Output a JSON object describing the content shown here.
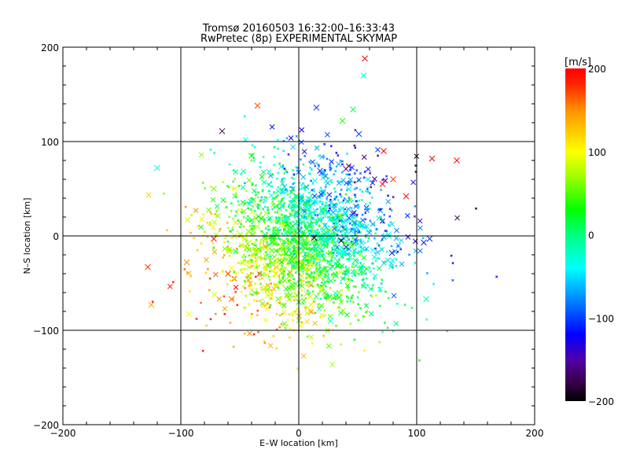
{
  "chart_data": {
    "type": "scatter",
    "title": "Tromsø 20160503 16:32:00–16:33:43",
    "subtitle": "RwPretec (8p) EXPERIMENTAL SKYMAP",
    "xlabel": "E–W location [km]",
    "ylabel": "N–S location [km]",
    "xlim": [
      -200,
      200
    ],
    "ylim": [
      -200,
      200
    ],
    "xticks": [
      "−200",
      "−100",
      "0",
      "100",
      "200"
    ],
    "yticks": [
      "−200",
      "−100",
      "0",
      "100",
      "200"
    ],
    "xtick_values": [
      -200,
      -100,
      0,
      100,
      200
    ],
    "ytick_values": [
      -200,
      -100,
      0,
      100,
      200
    ],
    "grid": true,
    "colorbar": {
      "label": "[m/s]",
      "range": [
        -200,
        200
      ],
      "ticks": [
        "−200",
        "−100",
        "0",
        "100",
        "200"
      ],
      "tick_values": [
        -200,
        -100,
        0,
        100,
        200
      ],
      "stops": [
        [
          -200,
          "#000000"
        ],
        [
          -175,
          "#3c0050"
        ],
        [
          -150,
          "#5000a8"
        ],
        [
          -120,
          "#0000ff"
        ],
        [
          -80,
          "#0080ff"
        ],
        [
          -40,
          "#00ffff"
        ],
        [
          0,
          "#00ff80"
        ],
        [
          30,
          "#00ff00"
        ],
        [
          70,
          "#a0ff00"
        ],
        [
          100,
          "#ffff00"
        ],
        [
          150,
          "#ff9000"
        ],
        [
          180,
          "#ff2800"
        ],
        [
          200,
          "#ff0000"
        ]
      ]
    },
    "highlighted_points": [
      {
        "x": 56,
        "y": 188,
        "v": 200
      },
      {
        "x": -35,
        "y": 138,
        "v": 170
      },
      {
        "x": 15,
        "y": 136,
        "v": -110
      },
      {
        "x": -65,
        "y": 111,
        "v": -175
      },
      {
        "x": 37,
        "y": 122,
        "v": 40
      },
      {
        "x": 46,
        "y": 134,
        "v": 10
      },
      {
        "x": 51,
        "y": 108,
        "v": -100
      },
      {
        "x": -120,
        "y": 72,
        "v": -30
      },
      {
        "x": 72,
        "y": 90,
        "v": 200
      },
      {
        "x": 113,
        "y": 82,
        "v": 200
      },
      {
        "x": 134,
        "y": 80,
        "v": 195
      },
      {
        "x": 40,
        "y": 71,
        "v": -170
      },
      {
        "x": 18,
        "y": 69,
        "v": -110
      },
      {
        "x": 71,
        "y": 55,
        "v": 195
      },
      {
        "x": 80,
        "y": 60,
        "v": 175
      },
      {
        "x": 91,
        "y": 42,
        "v": 195
      },
      {
        "x": -128,
        "y": -33,
        "v": 175
      },
      {
        "x": -125,
        "y": -73,
        "v": 140
      },
      {
        "x": -93,
        "y": -83,
        "v": 100
      },
      {
        "x": 108,
        "y": -67,
        "v": -20
      },
      {
        "x": 106,
        "y": -7,
        "v": -110
      },
      {
        "x": 111,
        "y": -3,
        "v": -105
      },
      {
        "x": 79,
        "y": -18,
        "v": -110
      },
      {
        "x": 27,
        "y": -90,
        "v": -40
      },
      {
        "x": -57,
        "y": -67,
        "v": 160
      },
      {
        "x": -95,
        "y": -28,
        "v": 150
      },
      {
        "x": -72,
        "y": -3,
        "v": 190
      },
      {
        "x": 13,
        "y": -2,
        "v": -200
      },
      {
        "x": 36,
        "y": -5,
        "v": -195
      },
      {
        "x": 55,
        "y": 170,
        "v": -30
      },
      {
        "x": -72,
        "y": 50,
        "v": 60
      },
      {
        "x": -40,
        "y": 85,
        "v": 30
      },
      {
        "x": 25,
        "y": 25,
        "v": -60
      },
      {
        "x": -20,
        "y": -40,
        "v": 90
      },
      {
        "x": 0,
        "y": -70,
        "v": 40
      },
      {
        "x": -60,
        "y": -40,
        "v": 170
      }
    ],
    "cloud": {
      "count": 2200,
      "center": [
        5,
        -5
      ],
      "spread": [
        38,
        42
      ],
      "note_velocity_trend": "positive to SW, negative to NE"
    }
  }
}
